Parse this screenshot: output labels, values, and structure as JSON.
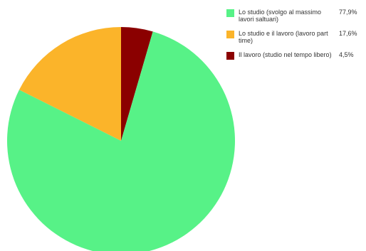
{
  "chart_data": {
    "type": "pie",
    "title": "",
    "legend_position": "top-right",
    "slices": [
      {
        "label": "Lo studio (svolgo al massimo lavori saltuari)",
        "value": 77.9,
        "display": "77,9%",
        "color": "#57f287"
      },
      {
        "label": "Lo studio e il lavoro (lavoro part time)",
        "value": 17.6,
        "display": "17,6%",
        "color": "#fbb42a"
      },
      {
        "label": "Il lavoro (studio nel tempo libero)",
        "value": 4.5,
        "display": "4,5%",
        "color": "#8b0000"
      }
    ]
  }
}
